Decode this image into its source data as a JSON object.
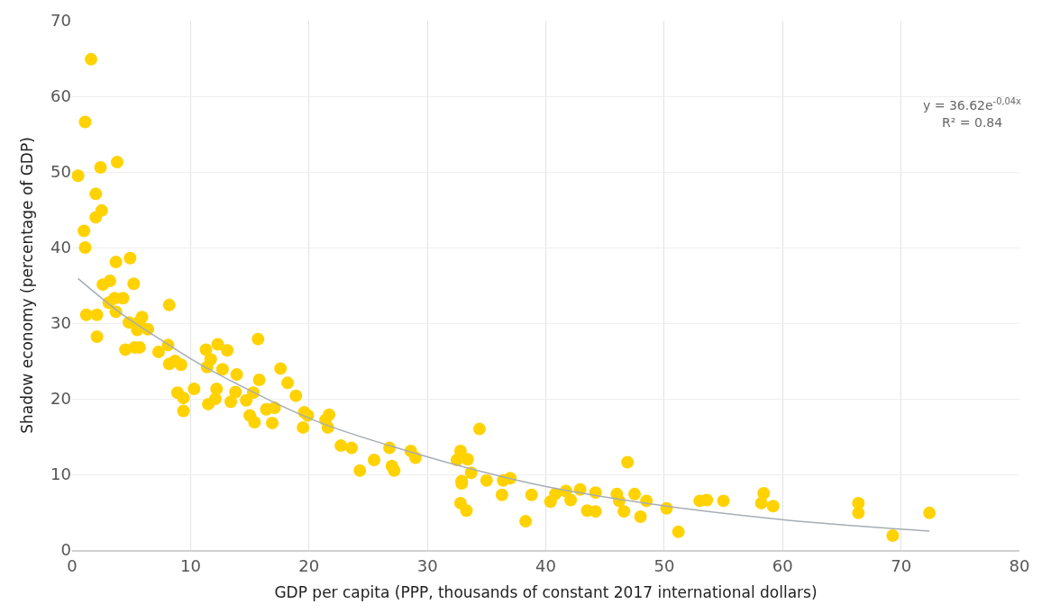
{
  "chart_data": {
    "type": "scatter",
    "xlabel": "GDP per capita (PPP, thousands of constant 2017 international dollars)",
    "ylabel": "Shadow economy (percentage of GDP)",
    "annotations": [
      "y = 36.62e$^{-0,04x}$",
      "R² = 0.84"
    ],
    "xlim": [
      0,
      80
    ],
    "xticks": [
      0,
      10,
      20,
      30,
      40,
      50,
      60,
      70,
      80
    ],
    "ylim": [
      0,
      70
    ],
    "yticks": [
      0,
      10,
      20,
      30,
      40,
      50,
      60,
      70
    ],
    "grid": true,
    "series": [
      {
        "color": "#ffd200",
        "marker": "circle",
        "x": [
          0.5,
          1.6,
          1.1,
          1.0,
          1.1,
          1.2,
          2.0,
          2.4,
          2.5,
          2.0,
          3.8,
          2.1,
          2.1,
          2.6,
          3.2,
          3.1,
          3.6,
          3.7,
          3.7,
          4.3,
          4.9,
          5.2,
          4.8,
          4.5,
          5.5,
          5.7,
          5.9,
          5.3,
          5.7,
          6.4,
          7.3,
          8.2,
          8.1,
          8.2,
          8.7,
          9.2,
          8.9,
          9.4,
          9.4,
          10.3,
          11.3,
          12.3,
          13.1,
          11.7,
          11.4,
          12.7,
          13.9,
          15.7,
          15.8,
          12.2,
          12.1,
          11.5,
          13.8,
          13.4,
          14.7,
          15.3,
          15.0,
          15.4,
          16.4,
          17.1,
          16.9,
          17.6,
          18.2,
          18.9,
          19.6,
          19.9,
          19.5,
          21.7,
          21.4,
          21.6,
          22.7,
          23.6,
          24.3,
          25.5,
          26.8,
          27.0,
          27.2,
          28.6,
          29.0,
          34.4,
          32.8,
          32.5,
          33.4,
          33.7,
          32.9,
          32.9,
          32.8,
          33.3,
          35.0,
          36.3,
          36.4,
          37.0,
          38.3,
          38.8,
          40.4,
          40.8,
          41.7,
          42.1,
          42.9,
          43.5,
          44.2,
          44.2,
          46.0,
          46.2,
          46.6,
          46.9,
          47.5,
          48.0,
          48.5,
          50.2,
          51.2,
          53.0,
          53.6,
          55.0,
          58.4,
          58.2,
          59.2,
          66.4,
          66.4,
          69.3,
          72.4
        ],
        "values": [
          49.5,
          64.9,
          56.6,
          42.2,
          40.0,
          31.1,
          47.1,
          50.6,
          44.9,
          44.0,
          51.3,
          31.1,
          28.2,
          35.1,
          35.6,
          32.7,
          33.3,
          31.5,
          38.1,
          33.3,
          38.6,
          35.2,
          30.1,
          26.5,
          29.1,
          30.2,
          30.8,
          26.8,
          26.8,
          29.2,
          26.2,
          32.4,
          27.1,
          24.6,
          25.0,
          24.5,
          20.8,
          20.1,
          18.4,
          21.3,
          26.5,
          27.2,
          26.4,
          25.2,
          24.2,
          23.9,
          23.2,
          27.9,
          22.5,
          21.3,
          20.0,
          19.3,
          20.9,
          19.6,
          19.8,
          20.8,
          17.8,
          16.9,
          18.6,
          18.8,
          16.8,
          24.0,
          22.1,
          20.4,
          18.2,
          17.8,
          16.2,
          17.9,
          17.2,
          16.2,
          13.8,
          13.5,
          10.5,
          11.9,
          13.5,
          11.1,
          10.5,
          13.1,
          12.2,
          16.0,
          13.1,
          11.9,
          12.0,
          10.2,
          9.1,
          8.8,
          6.2,
          5.2,
          9.2,
          7.3,
          9.2,
          9.5,
          3.8,
          7.3,
          6.4,
          7.4,
          7.8,
          6.6,
          8.0,
          5.2,
          5.1,
          7.6,
          7.4,
          6.5,
          5.1,
          11.6,
          7.4,
          4.4,
          6.5,
          5.5,
          2.4,
          6.5,
          6.6,
          6.5,
          7.5,
          6.2,
          5.8,
          6.2,
          4.9,
          1.9,
          4.9
        ]
      },
      {
        "type": "line",
        "color": "#a6adb4",
        "marker": "none",
        "line_style": "solid",
        "x": [
          0.5,
          4.2,
          7.4,
          11.0,
          20.2,
          26.8,
          35.0,
          40.0,
          50.2,
          60.1,
          72.4
        ],
        "values": [
          35.9,
          31.2,
          27.9,
          24.4,
          17.3,
          13.8,
          10.2,
          8.4,
          5.8,
          4.0,
          2.5
        ]
      }
    ]
  }
}
